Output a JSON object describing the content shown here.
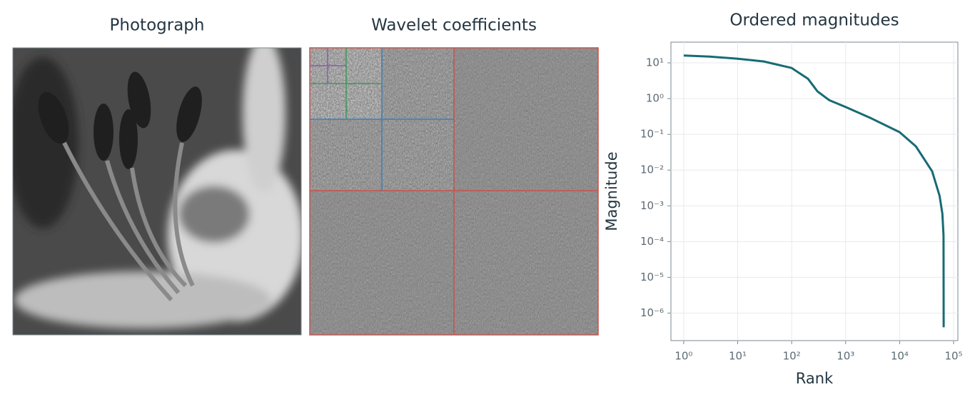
{
  "images": [
    {
      "title": "Photograph"
    },
    {
      "title": "Wavelet coefficients"
    }
  ],
  "chart_data": {
    "type": "line",
    "title": "Ordered magnitudes",
    "x_label": "Rank",
    "y_label": "Magnitude",
    "xscale": "log",
    "yscale": "log",
    "grid": true,
    "xlim": [
      0.58,
      120000
    ],
    "ylim": [
      1.7e-07,
      38
    ],
    "xticks": [
      {
        "value": 1,
        "label": "10⁰"
      },
      {
        "value": 10,
        "label": "10¹"
      },
      {
        "value": 100,
        "label": "10²"
      },
      {
        "value": 1000,
        "label": "10³"
      },
      {
        "value": 10000,
        "label": "10⁴"
      },
      {
        "value": 100000,
        "label": "10⁵"
      }
    ],
    "yticks": [
      {
        "value": 1e-06,
        "label": "10⁻⁶"
      },
      {
        "value": 1e-05,
        "label": "10⁻⁵"
      },
      {
        "value": 0.0001,
        "label": "10⁻⁴"
      },
      {
        "value": 0.001,
        "label": "10⁻³"
      },
      {
        "value": 0.01,
        "label": "10⁻²"
      },
      {
        "value": 0.1,
        "label": "10⁻¹"
      },
      {
        "value": 1,
        "label": "10⁰"
      },
      {
        "value": 10,
        "label": "10¹"
      }
    ],
    "x": [
      1,
      3,
      10,
      30,
      100,
      200,
      300,
      500,
      1000,
      3000,
      10000,
      20000,
      40000,
      55000,
      62000,
      65000,
      65536
    ],
    "series": [
      {
        "name": "Magnitude",
        "color": "#176b74",
        "values": [
          16,
          15,
          13,
          11,
          7.2,
          3.6,
          1.6,
          0.9,
          0.58,
          0.28,
          0.115,
          0.046,
          0.0093,
          0.0019,
          0.0006,
          0.00015,
          4e-07
        ]
      }
    ]
  }
}
